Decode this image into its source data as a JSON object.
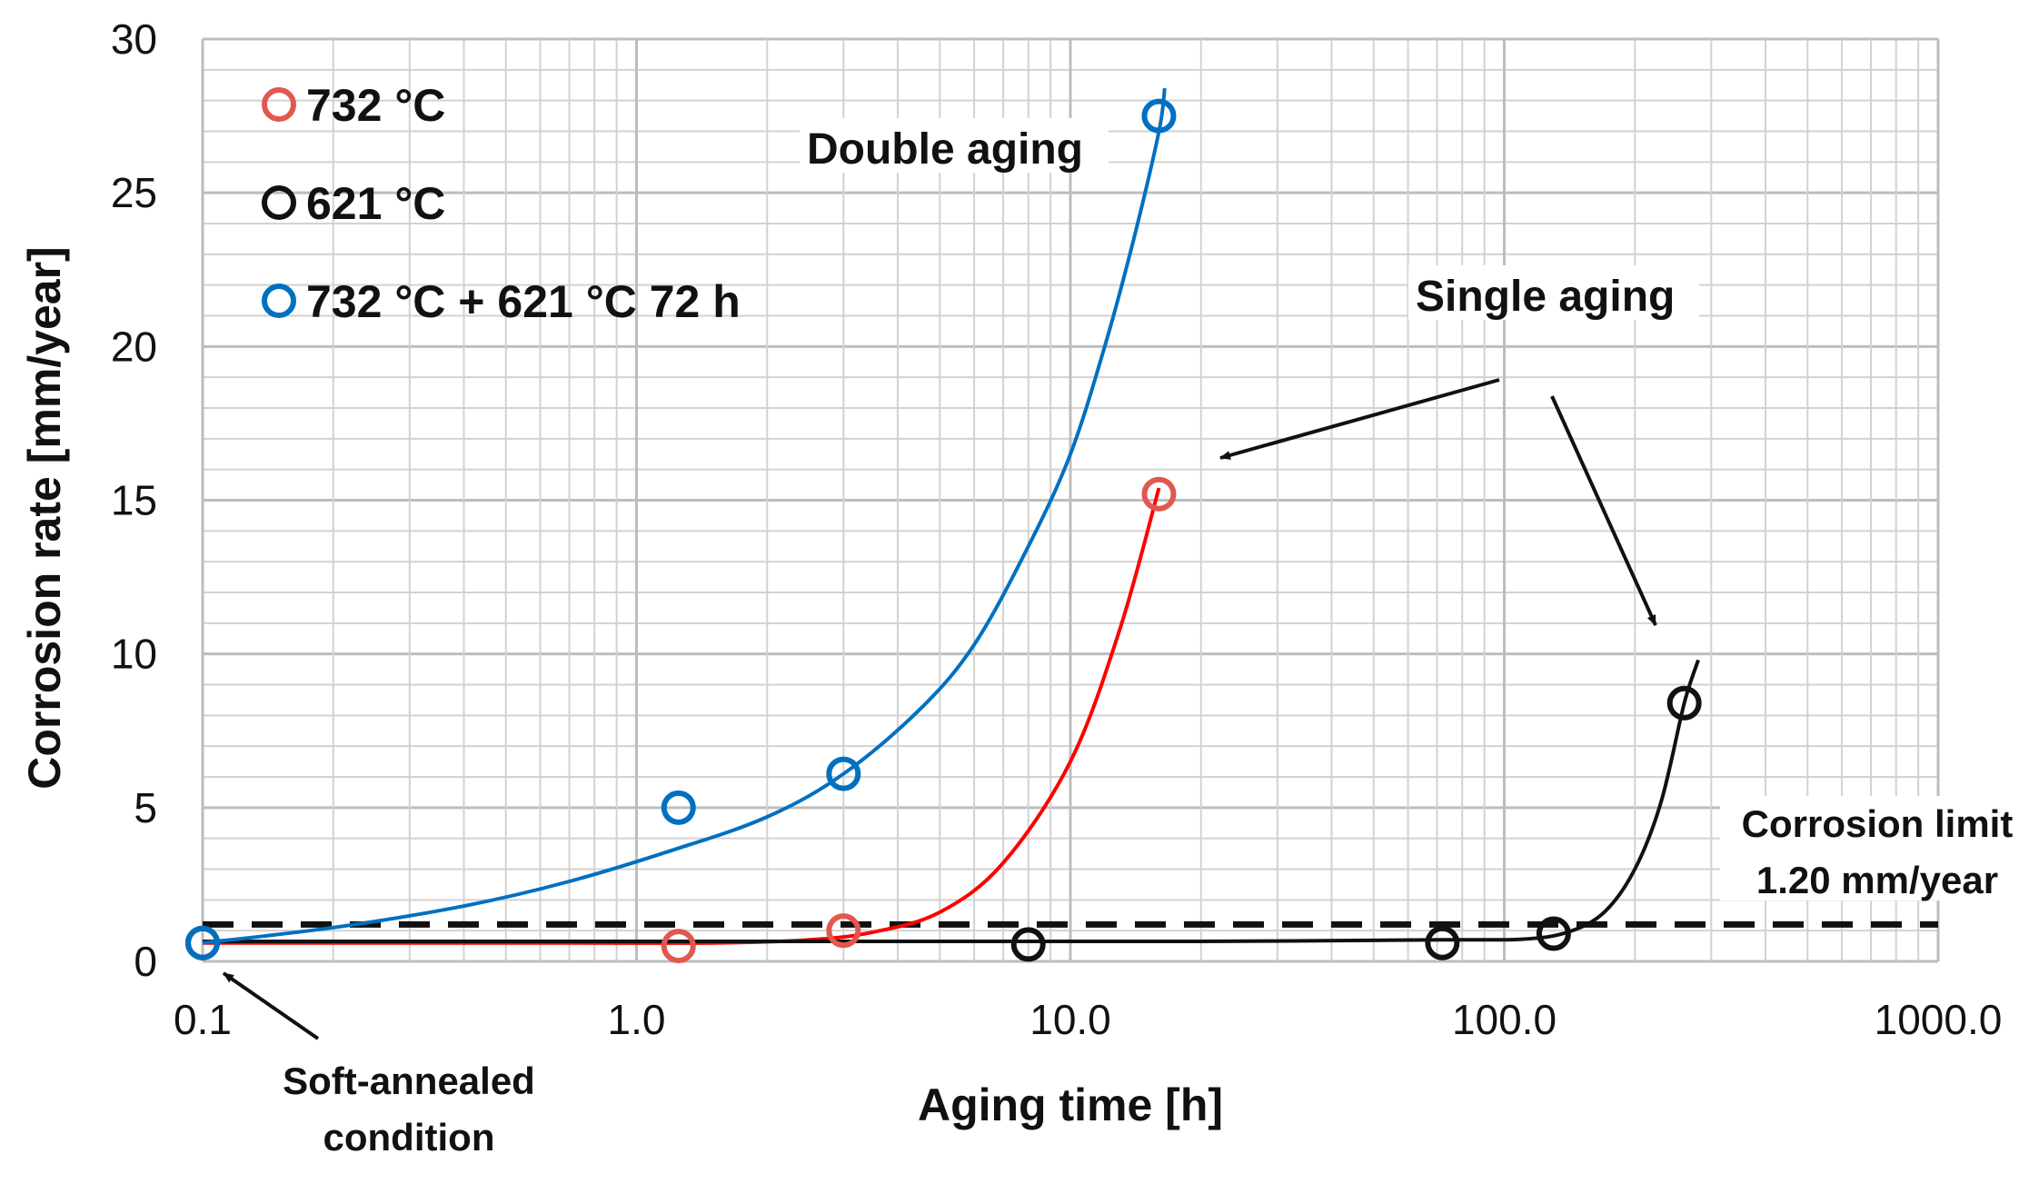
{
  "chart_data": {
    "type": "scatter",
    "xscale": "log",
    "xlabel": "Aging time [h]",
    "ylabel": "Corrosion rate [mm/year]",
    "xlim": [
      0.1,
      1000
    ],
    "ylim": [
      0,
      30
    ],
    "grid": true,
    "x_ticks": [
      {
        "value": 0.1,
        "label": "0.1"
      },
      {
        "value": 1,
        "label": "1.0"
      },
      {
        "value": 10,
        "label": "10.0"
      },
      {
        "value": 100,
        "label": "100.0"
      },
      {
        "value": 1000,
        "label": "1000.0"
      }
    ],
    "y_ticks": [
      {
        "value": 0,
        "label": "0"
      },
      {
        "value": 5,
        "label": "5"
      },
      {
        "value": 10,
        "label": "10"
      },
      {
        "value": 15,
        "label": "15"
      },
      {
        "value": 20,
        "label": "20"
      },
      {
        "value": 25,
        "label": "25"
      },
      {
        "value": 30,
        "label": "30"
      }
    ],
    "series": [
      {
        "name": "732 °C",
        "marker_color": "#e0584f",
        "line_color": "#ff0000",
        "points": [
          [
            0.1,
            0.6
          ],
          [
            1.25,
            0.5
          ],
          [
            3.0,
            1.0
          ],
          [
            16.0,
            15.2
          ]
        ],
        "curve": [
          [
            0.1,
            0.6
          ],
          [
            0.7,
            0.6
          ],
          [
            1.5,
            0.6
          ],
          [
            2.5,
            0.7
          ],
          [
            3.5,
            0.95
          ],
          [
            5.0,
            1.6
          ],
          [
            7.0,
            3.2
          ],
          [
            10.0,
            6.5
          ],
          [
            13.0,
            10.8
          ],
          [
            16.0,
            15.4
          ]
        ]
      },
      {
        "name": "621 °C",
        "marker_color": "#111111",
        "line_color": "#111111",
        "points": [
          [
            0.1,
            0.6
          ],
          [
            8.0,
            0.55
          ],
          [
            72.0,
            0.6
          ],
          [
            130.0,
            0.9
          ],
          [
            260.0,
            8.4
          ]
        ],
        "curve": [
          [
            0.1,
            0.65
          ],
          [
            1.0,
            0.65
          ],
          [
            5.0,
            0.65
          ],
          [
            20.0,
            0.65
          ],
          [
            72.0,
            0.7
          ],
          [
            110.0,
            0.72
          ],
          [
            140.0,
            0.95
          ],
          [
            170.0,
            1.6
          ],
          [
            200.0,
            3.0
          ],
          [
            230.0,
            5.2
          ],
          [
            260.0,
            8.4
          ],
          [
            280.0,
            9.8
          ]
        ]
      },
      {
        "name": "732 °C + 621 °C 72 h",
        "marker_color": "#0070c0",
        "line_color": "#0070c0",
        "points": [
          [
            0.1,
            0.6
          ],
          [
            1.25,
            5.0
          ],
          [
            3.0,
            6.1
          ],
          [
            16.0,
            27.5
          ]
        ],
        "curve": [
          [
            0.1,
            0.6
          ],
          [
            0.2,
            1.1
          ],
          [
            0.4,
            1.8
          ],
          [
            0.7,
            2.6
          ],
          [
            1.2,
            3.6
          ],
          [
            2.0,
            4.7
          ],
          [
            3.0,
            6.1
          ],
          [
            4.5,
            8.2
          ],
          [
            6.0,
            10.3
          ],
          [
            8.0,
            13.5
          ],
          [
            10.0,
            16.5
          ],
          [
            12.0,
            20.0
          ],
          [
            14.0,
            23.5
          ],
          [
            16.0,
            27.0
          ],
          [
            16.5,
            28.4
          ]
        ]
      }
    ],
    "limit_line": {
      "y": 1.2
    },
    "annotations": {
      "double_aging": "Double aging",
      "single_aging": "Single aging",
      "corrosion_limit_line1": "Corrosion limit",
      "corrosion_limit_line2": "1.20 mm/year",
      "soft_annealed_line1": "Soft-annealed",
      "soft_annealed_line2": "condition"
    }
  }
}
